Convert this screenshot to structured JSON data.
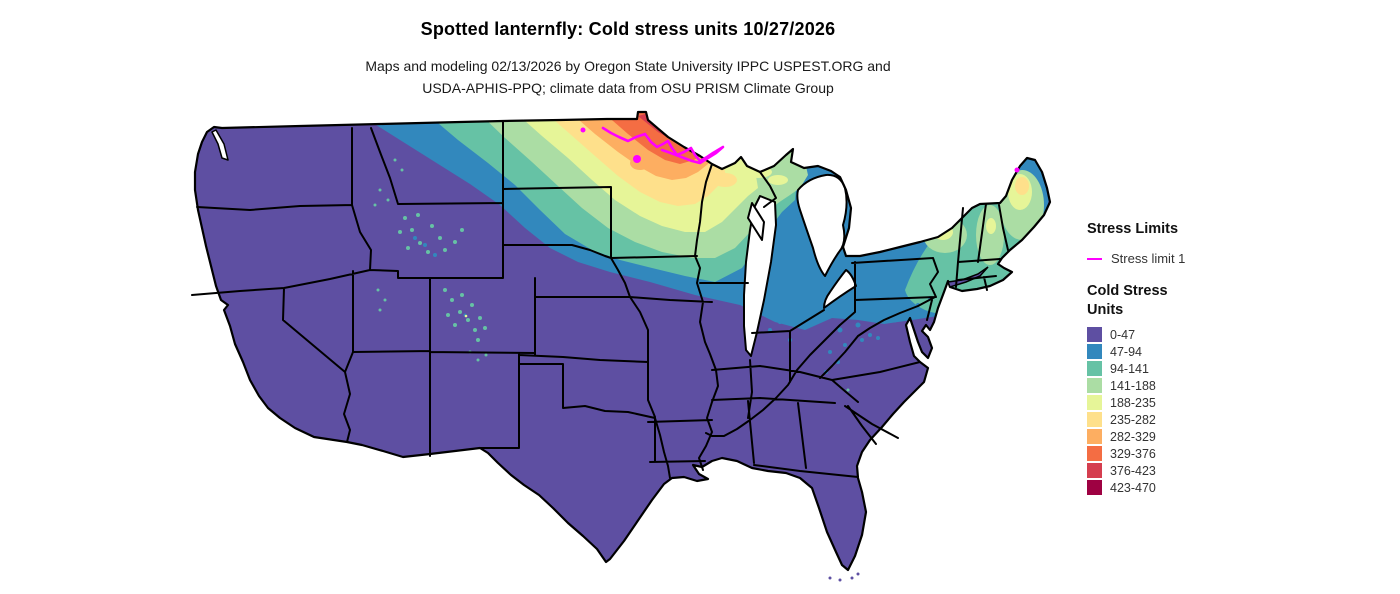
{
  "header": {
    "title": "Spotted lanternfly: Cold stress units 10/27/2026",
    "subtitle_line1": "Maps and modeling 02/13/2026 by Oregon State University IPPC USPEST.ORG and",
    "subtitle_line2": "USDA-APHIS-PPQ; climate data from OSU PRISM Climate Group"
  },
  "legend": {
    "stress_limits": {
      "title": "Stress Limits",
      "items": [
        {
          "label": "Stress limit 1",
          "color": "#ff00ff"
        }
      ]
    },
    "cold_stress": {
      "title_line1": "Cold Stress",
      "title_line2": "Units",
      "classes": [
        {
          "label": "0-47",
          "color": "#5e4fa2"
        },
        {
          "label": "47-94",
          "color": "#3288bd"
        },
        {
          "label": "94-141",
          "color": "#66c2a5"
        },
        {
          "label": "141-188",
          "color": "#abdda4"
        },
        {
          "label": "188-235",
          "color": "#e6f598"
        },
        {
          "label": "235-282",
          "color": "#fee08b"
        },
        {
          "label": "282-329",
          "color": "#fdae61"
        },
        {
          "label": "329-376",
          "color": "#f46d43"
        },
        {
          "label": "376-423",
          "color": "#d53e4f"
        },
        {
          "label": "423-470",
          "color": "#9e0142"
        }
      ]
    }
  },
  "chart_data": {
    "type": "heatmap",
    "title": "Spotted lanternfly: Cold stress units 10/27/2026",
    "subtitle": "Maps and modeling 02/13/2026 by Oregon State University IPPC USPEST.ORG and USDA-APHIS-PPQ; climate data from OSU PRISM Climate Group",
    "map_region": "Continental United States with state boundaries",
    "variable": "Cold Stress Units",
    "bins": [
      "0-47",
      "47-94",
      "94-141",
      "141-188",
      "188-235",
      "235-282",
      "282-329",
      "329-376",
      "376-423",
      "423-470"
    ],
    "bin_colors": [
      "#5e4fa2",
      "#3288bd",
      "#66c2a5",
      "#abdda4",
      "#e6f598",
      "#fee08b",
      "#fdae61",
      "#f46d43",
      "#d53e4f",
      "#9e0142"
    ],
    "legend_position": "right",
    "pattern": "Lowest values (0-47, purple) across most of the US; values increase toward the north-central states; maximum values (376-470, red/dark red) in far northern Minnesota; elevated values (94-282) across North Dakota, Minnesota, Wisconsin, Upper Michigan, Adirondacks and northern New England; scattered mid values in the Rockies of Wyoming, Colorado and Utah and across Pennsylvania/New York uplands",
    "overlay_line": {
      "name": "Stress limit 1",
      "color": "#ff00ff",
      "location": "contour through far northern Minnesota, small spots in eastern North Dakota and northern Maine"
    }
  }
}
